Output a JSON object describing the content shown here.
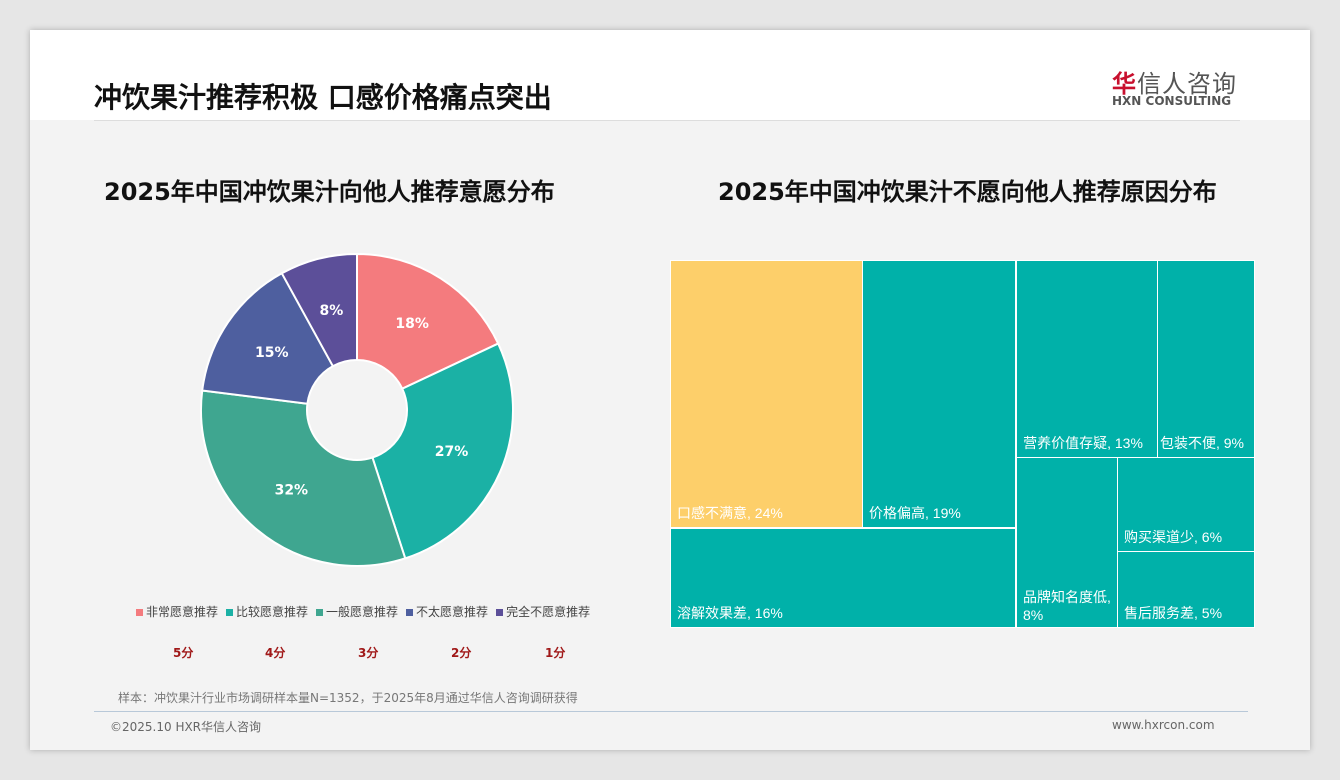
{
  "title": "冲饮果汁推荐积极 口感价格痛点突出",
  "logo": {
    "cn_mark": "华",
    "cn_rest": "信人咨询",
    "en": "HXN CONSULTING"
  },
  "footer": {
    "note": "样本：冲饮果汁行业市场调研样本量N=1352，于2025年8月通过华信人咨询调研获得",
    "copyright": "©2025.10 HXR华信人咨询",
    "url": "www.hxrcon.com"
  },
  "chart_data": [
    {
      "type": "pie",
      "title": "2025年中国冲饮果汁向他人推荐意愿分布",
      "donut": true,
      "categories": [
        "非常愿意推荐",
        "比较愿意推荐",
        "一般愿意推荐",
        "不太愿意推荐",
        "完全不愿意推荐"
      ],
      "values": [
        18,
        27,
        32,
        15,
        8
      ],
      "labels": [
        "18%",
        "27%",
        "32%",
        "15%",
        "8%"
      ],
      "scores": [
        "5分",
        "4分",
        "3分",
        "2分",
        "1分"
      ],
      "colors": [
        "#F47B7E",
        "#1BB1A5",
        "#3FA690",
        "#4E5F9F",
        "#5C4F99"
      ],
      "legend": "bottom"
    },
    {
      "type": "treemap",
      "title": "2025年中国冲饮果汁不愿向他人推荐原因分布",
      "items": [
        {
          "name": "口感不满意",
          "value": 24,
          "label": "口感不满意, 24%",
          "color": "#FDCF6A"
        },
        {
          "name": "价格偏高",
          "value": 19,
          "label": "价格偏高, 19%",
          "color": "#00B1A9"
        },
        {
          "name": "溶解效果差",
          "value": 16,
          "label": "溶解效果差, 16%",
          "color": "#00B1A9"
        },
        {
          "name": "营养价值存疑",
          "value": 13,
          "label": "营养价值存疑, 13%",
          "color": "#00B1A9"
        },
        {
          "name": "包装不便",
          "value": 9,
          "label": "包装不便, 9%",
          "color": "#00B1A9"
        },
        {
          "name": "品牌知名度低",
          "value": 8,
          "label": "品牌知名度低, 8%",
          "color": "#00B1A9"
        },
        {
          "name": "购买渠道少",
          "value": 6,
          "label": "购买渠道少, 6%",
          "color": "#00B1A9"
        },
        {
          "name": "售后服务差",
          "value": 5,
          "label": "售后服务差, 5%",
          "color": "#00B1A9"
        }
      ]
    }
  ]
}
